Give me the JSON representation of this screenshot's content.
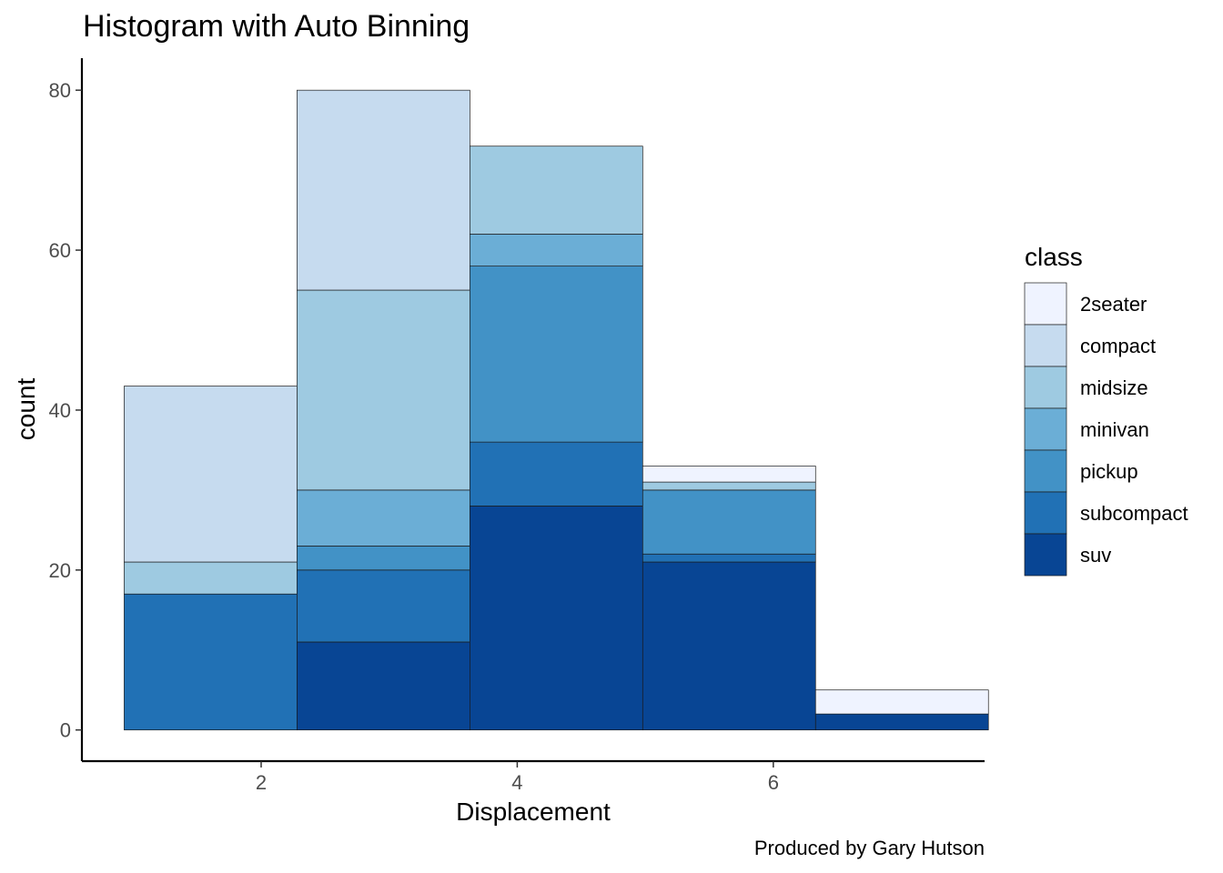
{
  "chart_data": {
    "type": "bar",
    "stacked": true,
    "histogram": true,
    "title": "Histogram with Auto Binning",
    "xlabel": "Displacement",
    "ylabel": "count",
    "caption": "Produced by Gary Hutson",
    "legend_title": "class",
    "legend_position": "right",
    "grid": false,
    "xlim": [
      0.6,
      7.65
    ],
    "ylim": [
      -3.9,
      84
    ],
    "x_ticks": [
      2,
      4,
      6
    ],
    "y_ticks": [
      0,
      20,
      40,
      60,
      80
    ],
    "bins": [
      {
        "x0": 0.93,
        "x1": 2.28
      },
      {
        "x0": 2.28,
        "x1": 3.63
      },
      {
        "x0": 3.63,
        "x1": 4.98
      },
      {
        "x0": 4.98,
        "x1": 6.33
      },
      {
        "x0": 6.33,
        "x1": 7.68
      }
    ],
    "series": [
      {
        "name": "2seater",
        "color": "#eff3ff",
        "values": [
          0,
          0,
          0,
          2,
          3
        ]
      },
      {
        "name": "compact",
        "color": "#c6dbef",
        "values": [
          22,
          25,
          0,
          0,
          0
        ]
      },
      {
        "name": "midsize",
        "color": "#9ecae1",
        "values": [
          4,
          25,
          11,
          1,
          0
        ]
      },
      {
        "name": "minivan",
        "color": "#6baed6",
        "values": [
          0,
          7,
          4,
          0,
          0
        ]
      },
      {
        "name": "pickup",
        "color": "#4292c6",
        "values": [
          0,
          3,
          22,
          8,
          0
        ]
      },
      {
        "name": "subcompact",
        "color": "#2171b5",
        "values": [
          17,
          9,
          8,
          1,
          0
        ]
      },
      {
        "name": "suv",
        "color": "#084594",
        "values": [
          0,
          11,
          28,
          21,
          2
        ]
      }
    ]
  }
}
